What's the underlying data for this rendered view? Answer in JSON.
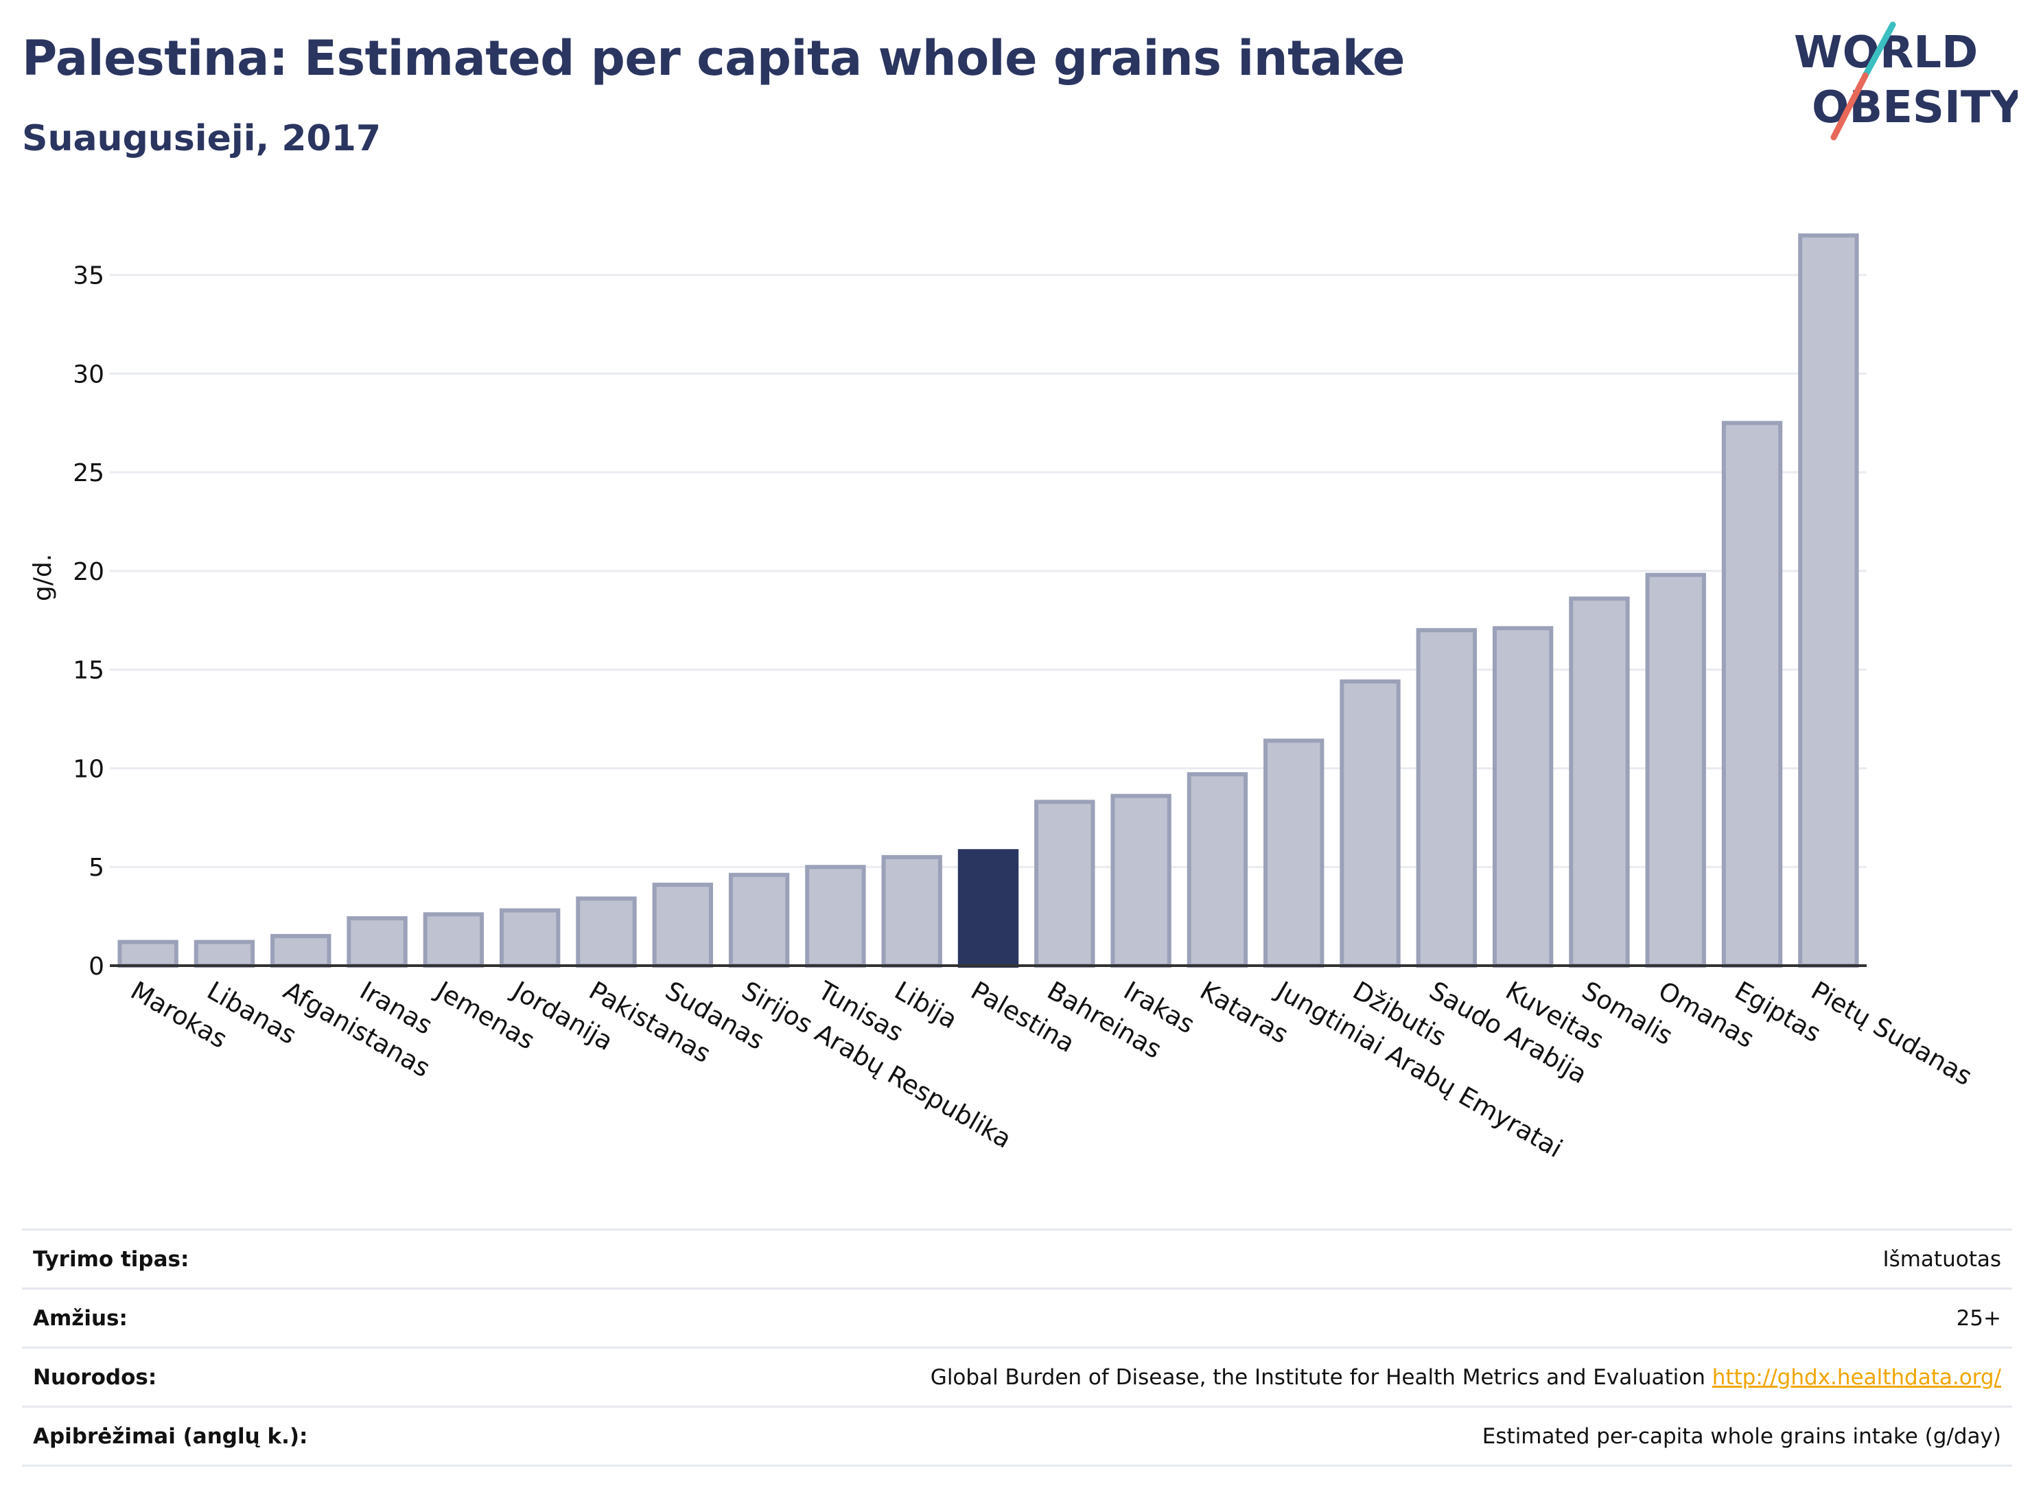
{
  "header": {
    "title": "Palestina: Estimated per capita whole grains intake",
    "subtitle": "Suaugusieji, 2017"
  },
  "logo": {
    "line1": "WORLD",
    "line2": "OBESITY",
    "accent_teal": "#3bbfc0",
    "accent_red": "#e8685a",
    "text_color": "#2a3560"
  },
  "colors": {
    "bar_fill": "#bfc2d1",
    "bar_stroke": "#9ba1b8",
    "highlight_fill": "#2a3560",
    "grid": "#e9ebf0",
    "axis": "#333333"
  },
  "chart_data": {
    "type": "bar",
    "title": "Palestina: Estimated per capita whole grains intake",
    "subtitle": "Suaugusieji, 2017",
    "xlabel": "",
    "ylabel": "g/d.",
    "ylim": [
      0,
      38.5
    ],
    "yticks": [
      0,
      5,
      10,
      15,
      20,
      25,
      30,
      35
    ],
    "grid": true,
    "highlight": "Palestina",
    "categories": [
      "Marokas",
      "Libanas",
      "Afganistanas",
      "Iranas",
      "Jemenas",
      "Jordanija",
      "Pakistanas",
      "Sudanas",
      "Sirijos Arabų Respublika",
      "Tunisas",
      "Libija",
      "Palestina",
      "Bahreinas",
      "Irakas",
      "Kataras",
      "Jungtiniai Arabų Emyratai",
      "Džibutis",
      "Saudo Arabija",
      "Kuveitas",
      "Somalis",
      "Omanas",
      "Egiptas",
      "Pietų Sudanas"
    ],
    "values": [
      1.2,
      1.2,
      1.5,
      2.4,
      2.6,
      2.8,
      3.4,
      4.1,
      4.6,
      5.0,
      5.5,
      5.8,
      8.3,
      8.6,
      9.7,
      11.4,
      14.4,
      17.0,
      17.1,
      18.6,
      19.8,
      27.5,
      37.0
    ]
  },
  "meta": {
    "rows": [
      {
        "label": "Tyrimo tipas:",
        "value": "Išmatuotas"
      },
      {
        "label": "Amžius:",
        "value": "25+"
      },
      {
        "label": "Nuorodos:",
        "value": "Global Burden of Disease, the Institute for Health Metrics and Evaluation",
        "link": "http://ghdx.healthdata.org/"
      },
      {
        "label": "Apibrėžimai (anglų k.):",
        "value": "Estimated per-capita whole grains intake (g/day)"
      }
    ]
  }
}
